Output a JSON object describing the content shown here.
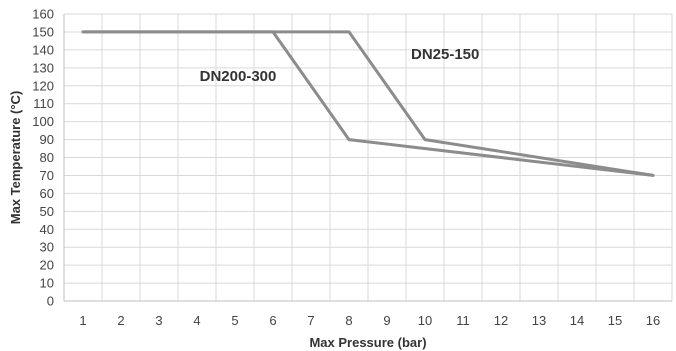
{
  "chart_data": {
    "type": "line",
    "xlabel": "Max Pressure (bar)",
    "ylabel": "Max Temperature (°C)",
    "xlim": [
      1,
      16
    ],
    "ylim": [
      0,
      160
    ],
    "x_ticks": [
      1,
      2,
      3,
      4,
      5,
      6,
      7,
      8,
      9,
      10,
      11,
      12,
      13,
      14,
      15,
      16
    ],
    "y_ticks": [
      0,
      10,
      20,
      30,
      40,
      50,
      60,
      70,
      80,
      90,
      100,
      110,
      120,
      130,
      140,
      150,
      160
    ],
    "grid": true,
    "series_color": "#8c8c8c",
    "series": [
      {
        "name": "DN25-150",
        "points": [
          [
            1,
            150
          ],
          [
            8,
            150
          ],
          [
            10,
            90
          ],
          [
            16,
            70
          ]
        ]
      },
      {
        "name": "DN200-300",
        "points": [
          [
            1,
            150
          ],
          [
            6,
            150
          ],
          [
            8,
            90
          ],
          [
            16,
            70
          ]
        ]
      }
    ]
  }
}
